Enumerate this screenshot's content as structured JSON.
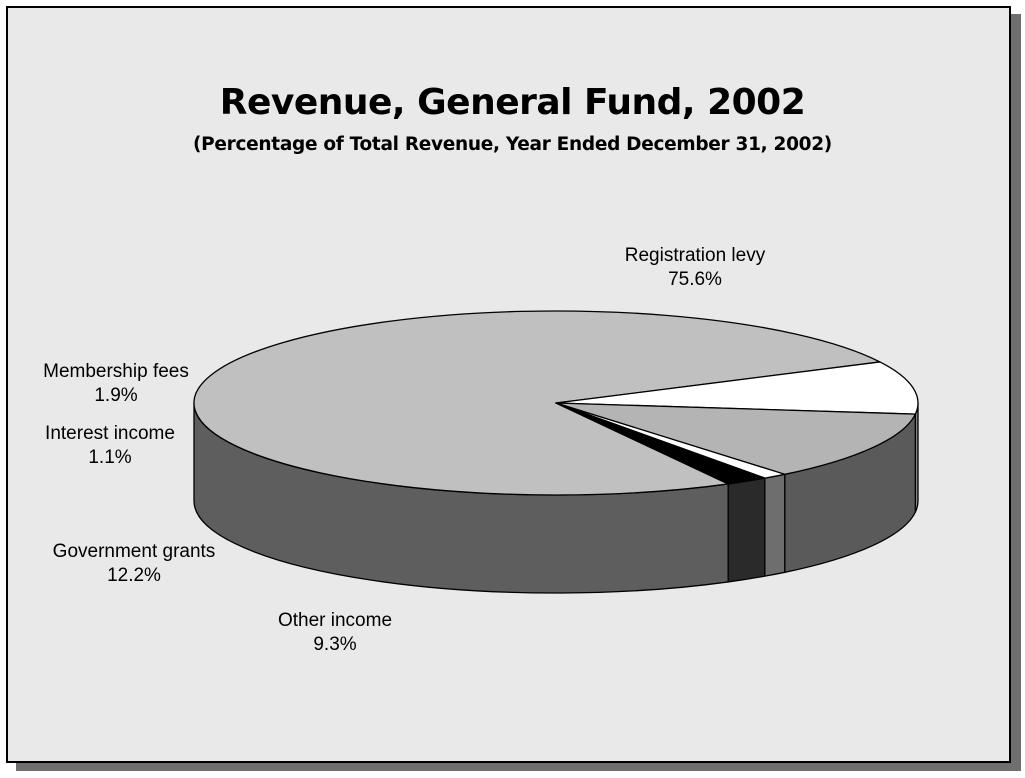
{
  "chart_data": {
    "type": "pie",
    "title": "Revenue, General Fund, 2002",
    "subtitle": "(Percentage of Total Revenue, Year Ended December 31, 2002)",
    "slices": [
      {
        "label": "Registration levy",
        "value": 75.6,
        "value_label": "75.6%",
        "color": "#c0c0c0",
        "side_color": "#5e5e5e"
      },
      {
        "label": "Other income",
        "value": 9.3,
        "value_label": "9.3%",
        "color": "#ffffff",
        "side_color": "#858585"
      },
      {
        "label": "Government grants",
        "value": 12.2,
        "value_label": "12.2%",
        "color": "#b4b4b4",
        "side_color": "#5a5a5a"
      },
      {
        "label": "Interest income",
        "value": 1.1,
        "value_label": "1.1%",
        "color": "#ffffff",
        "side_color": "#6e6e6e"
      },
      {
        "label": "Membership fees",
        "value": 1.9,
        "value_label": "1.9%",
        "color": "#000000",
        "side_color": "#2a2a2a"
      }
    ]
  }
}
